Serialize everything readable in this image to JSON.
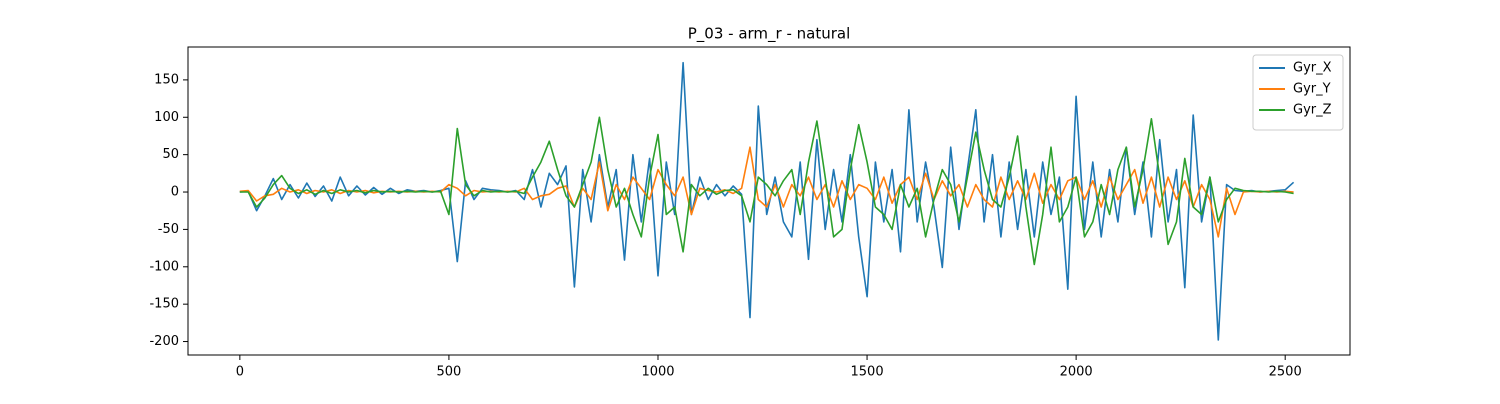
{
  "chart_data": {
    "type": "line",
    "title": "P_03 - arm_r - natural",
    "x": [
      0,
      20,
      40,
      60,
      80,
      100,
      120,
      140,
      160,
      180,
      200,
      220,
      240,
      260,
      280,
      300,
      320,
      340,
      360,
      380,
      400,
      420,
      440,
      460,
      480,
      500,
      520,
      540,
      560,
      580,
      600,
      620,
      640,
      660,
      680,
      700,
      720,
      740,
      760,
      780,
      800,
      820,
      840,
      860,
      880,
      900,
      920,
      940,
      960,
      980,
      1000,
      1020,
      1040,
      1060,
      1080,
      1100,
      1120,
      1140,
      1160,
      1180,
      1200,
      1220,
      1240,
      1260,
      1280,
      1300,
      1320,
      1340,
      1360,
      1380,
      1400,
      1420,
      1440,
      1460,
      1480,
      1500,
      1520,
      1540,
      1560,
      1580,
      1600,
      1620,
      1640,
      1660,
      1680,
      1700,
      1720,
      1740,
      1760,
      1780,
      1800,
      1820,
      1840,
      1860,
      1880,
      1900,
      1920,
      1940,
      1960,
      1980,
      2000,
      2020,
      2040,
      2060,
      2080,
      2100,
      2120,
      2140,
      2160,
      2180,
      2200,
      2220,
      2240,
      2260,
      2280,
      2300,
      2320,
      2340,
      2360,
      2380,
      2400,
      2420,
      2440,
      2460,
      2480,
      2500,
      2520
    ],
    "series": [
      {
        "name": "Gyr_X",
        "color": "#1f77b4",
        "values": [
          0,
          1,
          -25,
          -5,
          18,
          -10,
          10,
          -8,
          12,
          -6,
          8,
          -12,
          20,
          -5,
          8,
          -4,
          6,
          -3,
          5,
          -2,
          3,
          1,
          2,
          0,
          2,
          5,
          -93,
          15,
          -10,
          5,
          3,
          2,
          0,
          2,
          -10,
          30,
          -20,
          25,
          10,
          35,
          -127,
          30,
          -40,
          50,
          -20,
          30,
          -91,
          50,
          -40,
          45,
          -112,
          40,
          -30,
          173,
          -30,
          20,
          -10,
          10,
          -5,
          8,
          -3,
          -168,
          115,
          -30,
          20,
          -40,
          -60,
          40,
          -90,
          70,
          -50,
          30,
          -40,
          50,
          -60,
          -140,
          40,
          -40,
          30,
          -80,
          110,
          -40,
          40,
          -20,
          -101,
          60,
          -50,
          30,
          110,
          -40,
          50,
          -60,
          40,
          -50,
          30,
          -60,
          40,
          -30,
          20,
          -130,
          128,
          -50,
          40,
          -60,
          30,
          -40,
          60,
          -30,
          40,
          -60,
          70,
          -40,
          30,
          -128,
          103,
          -40,
          20,
          -198,
          10,
          2,
          1,
          2,
          0,
          1,
          2,
          3,
          13
        ]
      },
      {
        "name": "Gyr_Y",
        "color": "#ff7f0e",
        "values": [
          1,
          2,
          -12,
          -5,
          -3,
          5,
          0,
          3,
          -2,
          2,
          0,
          3,
          -2,
          2,
          0,
          2,
          -1,
          1,
          0,
          1,
          0,
          1,
          0,
          1,
          0,
          10,
          5,
          -5,
          2,
          0,
          1,
          0,
          1,
          0,
          5,
          -10,
          -5,
          -3,
          5,
          8,
          -20,
          5,
          -10,
          40,
          -25,
          10,
          -10,
          20,
          5,
          -10,
          30,
          10,
          -5,
          20,
          -30,
          5,
          2,
          0,
          3,
          -2,
          5,
          60,
          -10,
          -20,
          10,
          -20,
          10,
          -5,
          20,
          -10,
          10,
          -20,
          15,
          -10,
          10,
          5,
          -10,
          20,
          -15,
          10,
          20,
          -10,
          25,
          -10,
          15,
          -5,
          10,
          -20,
          10,
          -10,
          -20,
          20,
          -10,
          15,
          -10,
          25,
          -15,
          10,
          -10,
          15,
          20,
          -10,
          15,
          -20,
          20,
          -10,
          10,
          30,
          -15,
          20,
          -20,
          20,
          -10,
          15,
          -20,
          10,
          -10,
          -60,
          5,
          -30,
          0,
          1,
          0,
          1,
          0,
          1,
          0
        ]
      },
      {
        "name": "Gyr_Z",
        "color": "#2ca02c",
        "values": [
          0,
          0,
          -20,
          -8,
          10,
          22,
          5,
          -2,
          3,
          -3,
          2,
          -2,
          3,
          0,
          2,
          -1,
          2,
          0,
          1,
          0,
          1,
          0,
          1,
          0,
          1,
          -30,
          85,
          10,
          -5,
          2,
          0,
          1,
          0,
          1,
          -2,
          20,
          40,
          68,
          30,
          -5,
          -20,
          10,
          40,
          100,
          30,
          -20,
          5,
          -30,
          -60,
          20,
          77,
          -30,
          -20,
          -80,
          10,
          -5,
          5,
          -3,
          2,
          3,
          -5,
          -40,
          20,
          10,
          -5,
          15,
          30,
          -30,
          40,
          95,
          20,
          -60,
          -50,
          30,
          90,
          40,
          -20,
          -30,
          -50,
          10,
          -20,
          5,
          -60,
          -10,
          30,
          10,
          -40,
          20,
          80,
          30,
          -10,
          -20,
          20,
          75,
          -20,
          -97,
          -30,
          60,
          -40,
          -20,
          20,
          -60,
          -40,
          10,
          -30,
          30,
          60,
          -20,
          30,
          98,
          20,
          -70,
          -40,
          45,
          -20,
          -30,
          20,
          -40,
          -10,
          5,
          2,
          1,
          1,
          0,
          1,
          0,
          -2
        ]
      }
    ],
    "xlim": [
      -124,
      2655
    ],
    "ylim": [
      -218,
      194
    ],
    "xticks": [
      0,
      500,
      1000,
      1500,
      2000,
      2500
    ],
    "yticks": [
      -200,
      -150,
      -100,
      -50,
      0,
      50,
      100,
      150
    ],
    "legend": "upper right"
  }
}
